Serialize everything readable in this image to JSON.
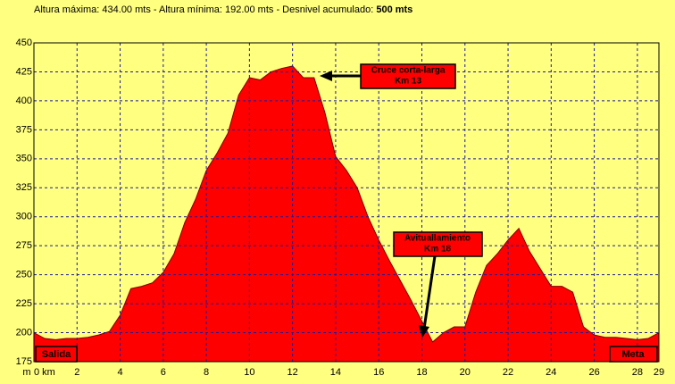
{
  "chart_data": {
    "type": "area",
    "title": "Altura máxima: 434.00 mts - Altura mínima: 192.00 mts - Desnivel acumulado: ",
    "title_bold": "500 mts",
    "y_label": "m",
    "start_label": "Salida",
    "end_label": "Meta",
    "annotations": [
      [
        "Cruce corta-larga",
        "Km 13"
      ],
      [
        "Avituallamiento",
        "Km 18"
      ]
    ],
    "color": "#ff0000",
    "grid": true,
    "x": [
      0,
      0.5,
      1,
      1.5,
      2,
      2.5,
      3,
      3.5,
      4,
      4.5,
      5,
      5.5,
      6,
      6.5,
      7,
      7.5,
      8,
      8.5,
      9,
      9.5,
      10,
      10.5,
      11,
      11.5,
      12,
      12.5,
      13,
      13.5,
      14,
      14.5,
      15,
      15.5,
      16,
      16.5,
      17,
      17.5,
      18,
      18.5,
      19,
      19.5,
      20,
      20.5,
      21,
      21.5,
      22,
      22.5,
      23,
      23.5,
      24,
      24.5,
      25,
      25.5,
      26,
      26.5,
      27,
      27.5,
      28,
      28.5,
      29
    ],
    "values": [
      200,
      195,
      194,
      195,
      195,
      196,
      198,
      201,
      215,
      238,
      240,
      243,
      252,
      268,
      295,
      315,
      340,
      355,
      372,
      405,
      420,
      418,
      425,
      428,
      430,
      420,
      420,
      390,
      352,
      340,
      325,
      300,
      280,
      262,
      245,
      228,
      210,
      192,
      200,
      205,
      205,
      235,
      258,
      268,
      280,
      290,
      270,
      255,
      240,
      240,
      235,
      205,
      198,
      196,
      196,
      195,
      194,
      195,
      200
    ],
    "xlim": [
      0,
      29
    ],
    "xticks": [
      {
        "value": 0,
        "label": "0 km"
      },
      2,
      4,
      6,
      8,
      10,
      12,
      14,
      16,
      18,
      20,
      22,
      24,
      26,
      28,
      29
    ],
    "ylim": [
      175,
      450
    ],
    "yticks": [
      175,
      200,
      225,
      250,
      275,
      300,
      325,
      350,
      375,
      400,
      425,
      450
    ]
  }
}
